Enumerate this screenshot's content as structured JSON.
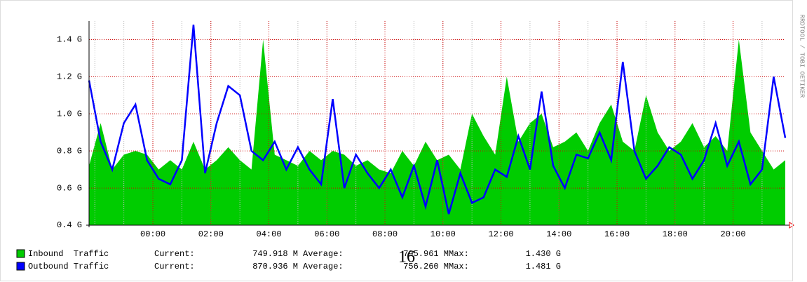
{
  "chart_data": {
    "type": "area-line",
    "annotation": "16",
    "watermark": "RRDTOOL / TOBI OETIKER",
    "grid": true,
    "xlim": [
      -2.2,
      21.8
    ],
    "xticks": [
      {
        "value": 0,
        "label": "00:00"
      },
      {
        "value": 2,
        "label": "02:00"
      },
      {
        "value": 4,
        "label": "04:00"
      },
      {
        "value": 6,
        "label": "06:00"
      },
      {
        "value": 8,
        "label": "08:00"
      },
      {
        "value": 10,
        "label": "10:00"
      },
      {
        "value": 12,
        "label": "12:00"
      },
      {
        "value": 14,
        "label": "14:00"
      },
      {
        "value": 16,
        "label": "16:00"
      },
      {
        "value": 18,
        "label": "18:00"
      },
      {
        "value": 20,
        "label": "20:00"
      }
    ],
    "ylim": [
      0.4,
      1.5
    ],
    "yticks": [
      {
        "value": 0.4,
        "label": "0.4 G"
      },
      {
        "value": 0.6,
        "label": "0.6 G"
      },
      {
        "value": 0.8,
        "label": "0.8 G"
      },
      {
        "value": 1.0,
        "label": "1.0 G"
      },
      {
        "value": 1.2,
        "label": "1.2 G"
      },
      {
        "value": 1.4,
        "label": "1.4 G"
      }
    ],
    "x": [
      -2.2,
      -1.8,
      -1.4,
      -1.0,
      -0.6,
      -0.2,
      0.2,
      0.6,
      1.0,
      1.4,
      1.8,
      2.2,
      2.6,
      3.0,
      3.4,
      3.8,
      4.2,
      4.6,
      5.0,
      5.4,
      5.8,
      6.2,
      6.6,
      7.0,
      7.4,
      7.8,
      8.2,
      8.6,
      9.0,
      9.4,
      9.8,
      10.2,
      10.6,
      11.0,
      11.4,
      11.8,
      12.2,
      12.6,
      13.0,
      13.4,
      13.8,
      14.2,
      14.6,
      15.0,
      15.4,
      15.8,
      16.2,
      16.6,
      17.0,
      17.4,
      17.8,
      18.2,
      18.6,
      19.0,
      19.4,
      19.8,
      20.2,
      20.6,
      21.0,
      21.4,
      21.8
    ],
    "series": [
      {
        "name": "Inbound  Traffic",
        "color": "#00cc00",
        "style": "area",
        "values": [
          0.72,
          0.95,
          0.7,
          0.78,
          0.8,
          0.78,
          0.7,
          0.75,
          0.7,
          0.85,
          0.7,
          0.75,
          0.82,
          0.75,
          0.7,
          1.4,
          0.78,
          0.75,
          0.72,
          0.8,
          0.75,
          0.8,
          0.78,
          0.72,
          0.75,
          0.7,
          0.68,
          0.8,
          0.72,
          0.85,
          0.75,
          0.78,
          0.7,
          1.0,
          0.88,
          0.78,
          1.2,
          0.85,
          0.95,
          1.0,
          0.82,
          0.85,
          0.9,
          0.8,
          0.95,
          1.05,
          0.85,
          0.8,
          1.1,
          0.9,
          0.8,
          0.85,
          0.95,
          0.82,
          0.88,
          0.8,
          1.4,
          0.9,
          0.8,
          0.7,
          0.75
        ],
        "stats": [
          {
            "label": "Current:",
            "value": "749.918 M"
          },
          {
            "label": "Average:",
            "value": "795.961 M"
          },
          {
            "label": "Max:",
            "value": "1.430 G"
          }
        ]
      },
      {
        "name": "Outbound Traffic",
        "color": "#0000ff",
        "style": "line",
        "values": [
          1.18,
          0.85,
          0.7,
          0.95,
          1.05,
          0.75,
          0.65,
          0.62,
          0.75,
          1.48,
          0.68,
          0.95,
          1.15,
          1.1,
          0.8,
          0.75,
          0.85,
          0.7,
          0.82,
          0.7,
          0.62,
          1.08,
          0.6,
          0.78,
          0.68,
          0.6,
          0.7,
          0.55,
          0.72,
          0.5,
          0.75,
          0.46,
          0.68,
          0.52,
          0.55,
          0.7,
          0.66,
          0.88,
          0.7,
          1.12,
          0.72,
          0.6,
          0.78,
          0.76,
          0.9,
          0.75,
          1.28,
          0.8,
          0.65,
          0.72,
          0.82,
          0.78,
          0.65,
          0.75,
          0.95,
          0.72,
          0.85,
          0.62,
          0.7,
          1.2,
          0.87
        ],
        "stats": [
          {
            "label": "Current:",
            "value": "870.936 M"
          },
          {
            "label": "Average:",
            "value": "756.260 M"
          },
          {
            "label": "Max:",
            "value": "1.481 G"
          }
        ]
      }
    ]
  }
}
